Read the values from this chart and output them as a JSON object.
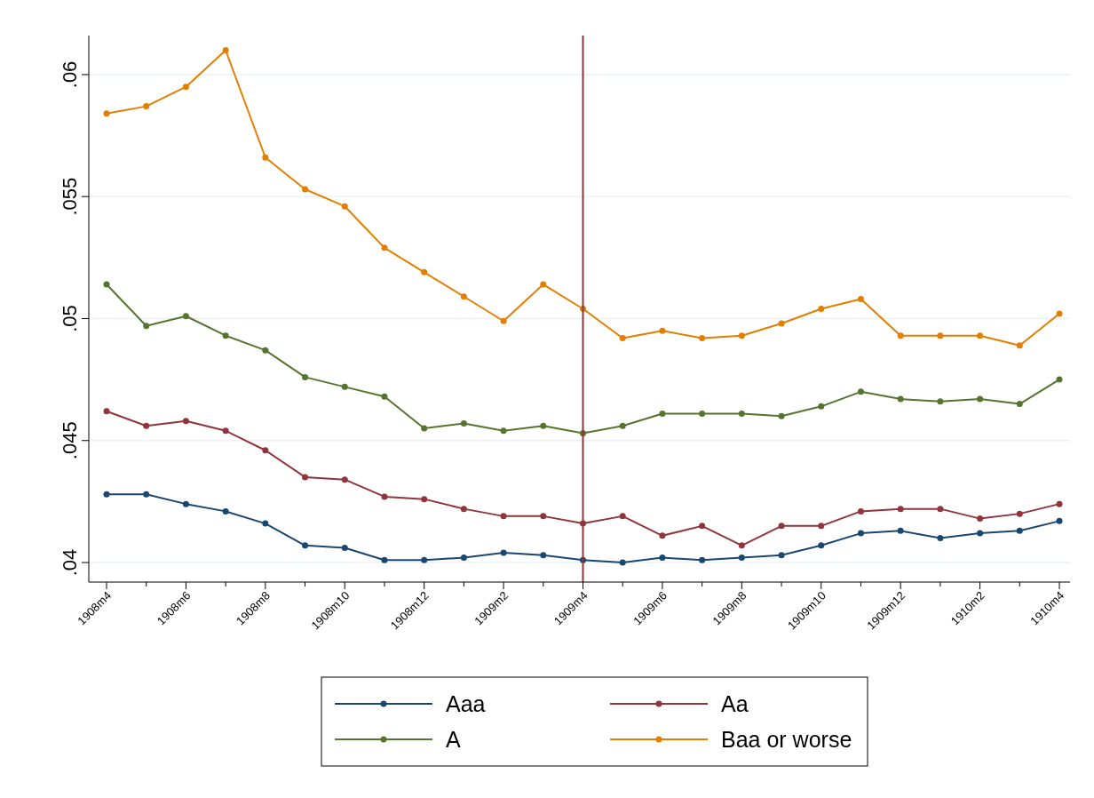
{
  "chart_data": {
    "type": "line",
    "categories": [
      "1908m4",
      null,
      "1908m6",
      null,
      "1908m8",
      null,
      "1908m10",
      null,
      "1908m12",
      null,
      "1909m2",
      null,
      "1909m4",
      null,
      "1909m6",
      null,
      "1909m8",
      null,
      "1909m10",
      null,
      "1909m12",
      null,
      "1910m2",
      null,
      "1910m4"
    ],
    "series": [
      {
        "name": "Aaa",
        "color": "#1a476f",
        "values": [
          0.0428,
          0.0428,
          0.0424,
          0.0421,
          0.0416,
          0.0407,
          0.0406,
          0.0401,
          0.0401,
          0.0402,
          0.0404,
          0.0403,
          0.0401,
          0.04,
          0.0402,
          0.0401,
          0.0402,
          0.0403,
          0.0407,
          0.0412,
          0.0413,
          0.041,
          0.0412,
          0.0413,
          0.0417
        ]
      },
      {
        "name": "Aa",
        "color": "#90353b",
        "values": [
          0.0462,
          0.0456,
          0.0458,
          0.0454,
          0.0446,
          0.0435,
          0.0434,
          0.0427,
          0.0426,
          0.0422,
          0.0419,
          0.0419,
          0.0416,
          0.0419,
          0.0411,
          0.0415,
          0.0407,
          0.0415,
          0.0415,
          0.0421,
          0.0422,
          0.0422,
          0.0418,
          0.042,
          0.0424
        ]
      },
      {
        "name": "A",
        "color": "#55752f",
        "values": [
          0.0514,
          0.0497,
          0.0501,
          0.0493,
          0.0487,
          0.0476,
          0.0472,
          0.0468,
          0.0455,
          0.0457,
          0.0454,
          0.0456,
          0.0453,
          0.0456,
          0.0461,
          0.0461,
          0.0461,
          0.046,
          0.0464,
          0.047,
          0.0467,
          0.0466,
          0.0467,
          0.0465,
          0.0475
        ]
      },
      {
        "name": "Baa or worse",
        "color": "#e37e00",
        "values": [
          0.0584,
          0.0587,
          0.0595,
          0.061,
          0.0566,
          0.0553,
          0.0546,
          0.0529,
          0.0519,
          0.0509,
          0.0499,
          0.0514,
          0.0504,
          0.0492,
          0.0495,
          0.0492,
          0.0493,
          0.0498,
          0.0504,
          0.0508,
          0.0493,
          0.0493,
          0.0493,
          0.0489,
          0.0502
        ]
      }
    ],
    "ylim": [
      0.0392,
      0.0616
    ],
    "yticks": [
      {
        "value": 0.04,
        "label": ".04"
      },
      {
        "value": 0.045,
        "label": ".045"
      },
      {
        "value": 0.05,
        "label": ".05"
      },
      {
        "value": 0.055,
        "label": ".055"
      },
      {
        "value": 0.06,
        "label": ".06"
      }
    ],
    "grid": "y",
    "legend": "bottom",
    "marker": "circle",
    "ref_lines": [
      {
        "axis": "x",
        "value": "1909m4",
        "color": "#90353b"
      }
    ]
  }
}
